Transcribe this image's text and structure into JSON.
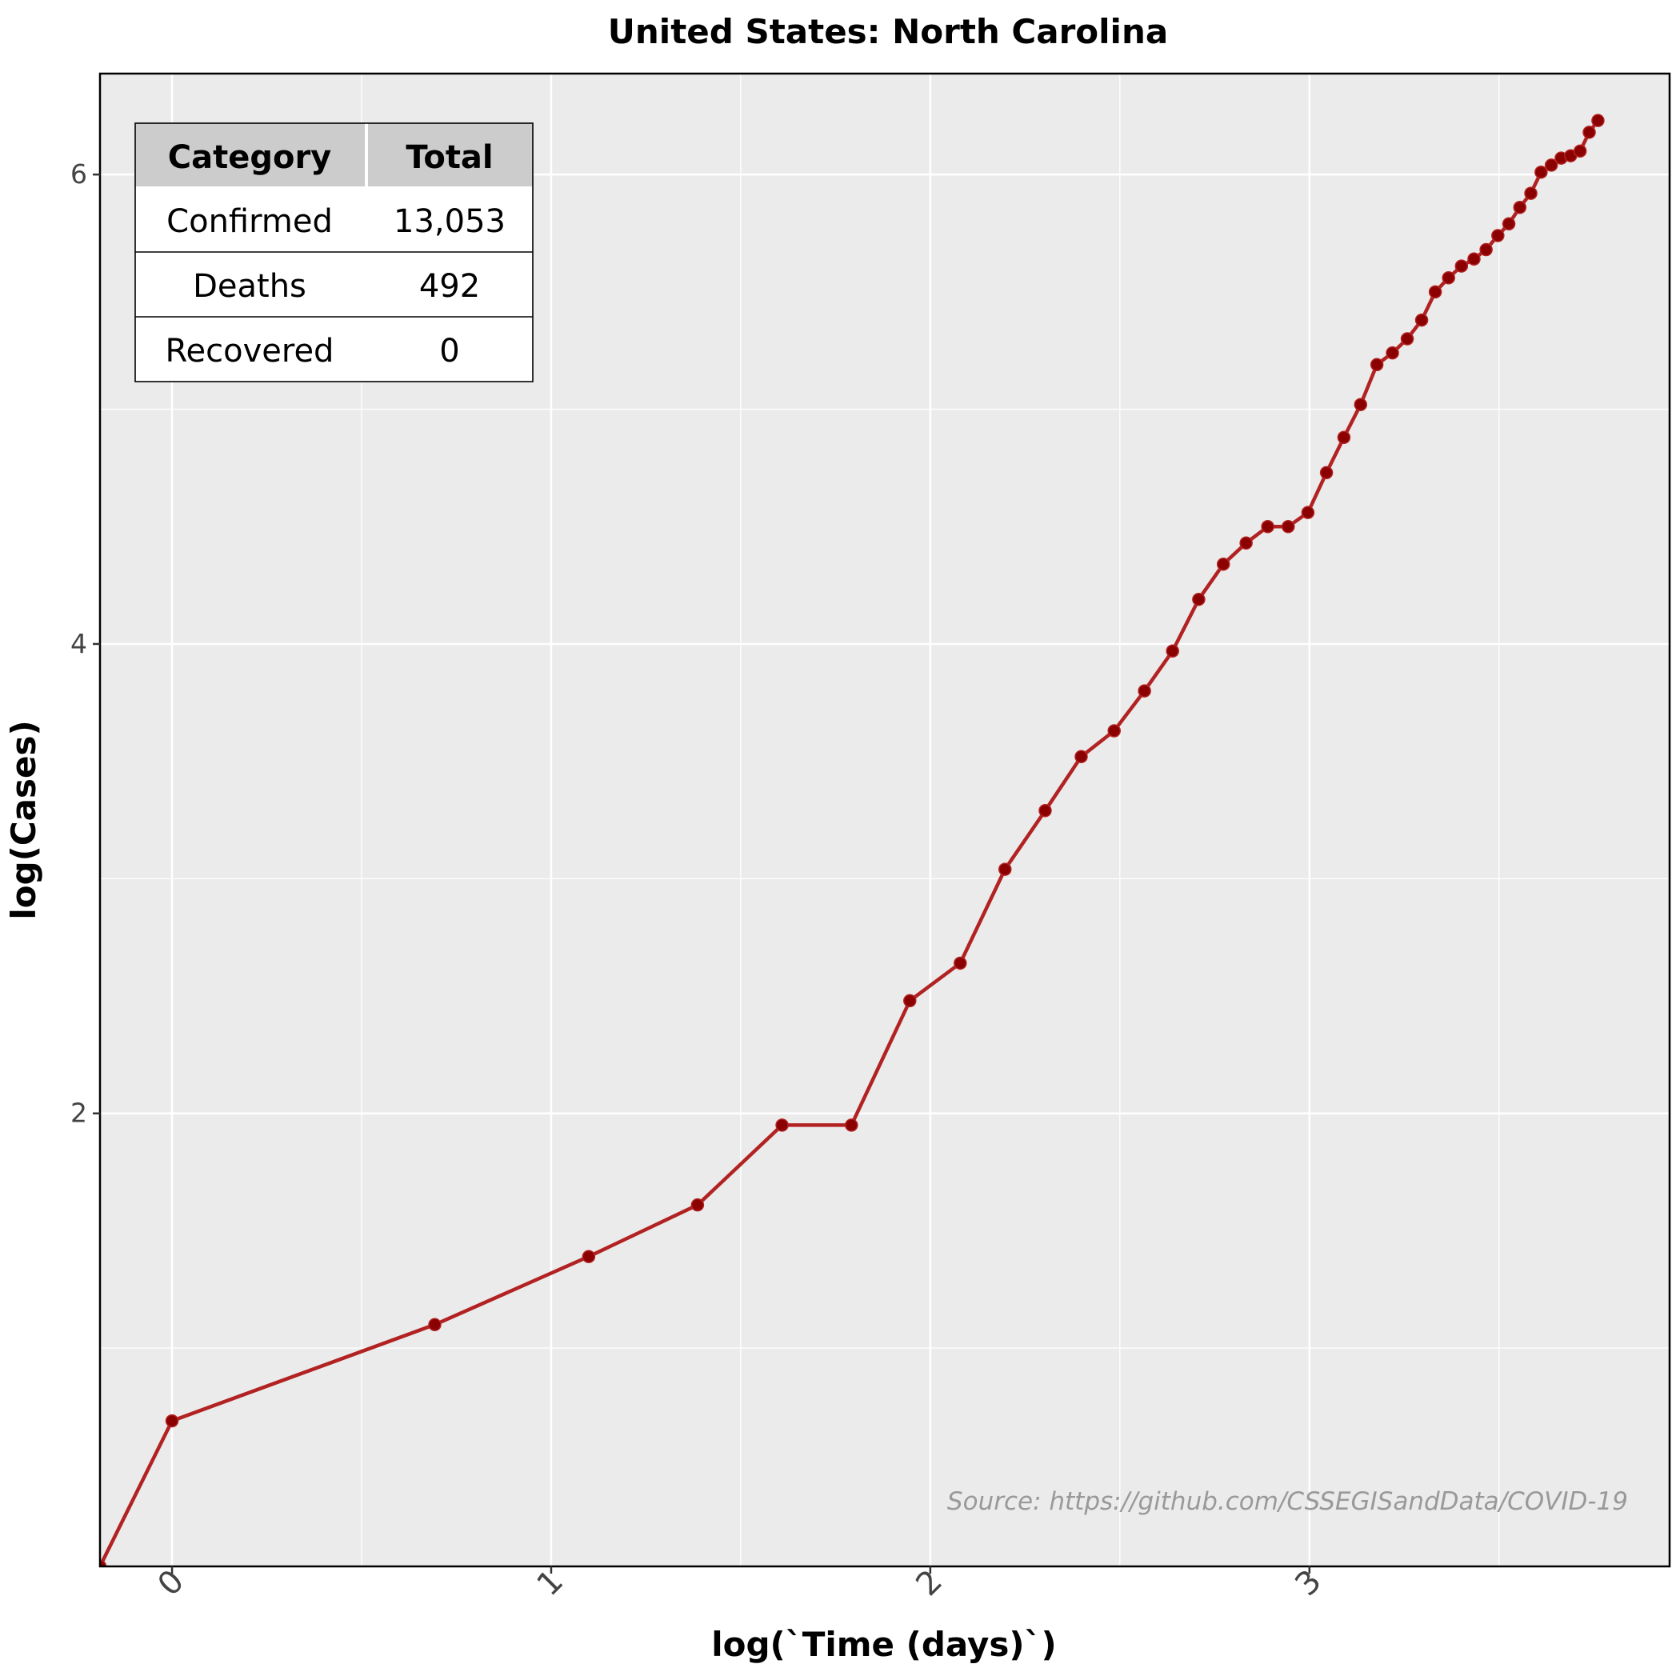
{
  "chart_data": {
    "type": "line",
    "title": "United States: North Carolina",
    "xlabel": "log(`Time (days)`)",
    "ylabel": "log(Cases)",
    "xlim": [
      -0.19,
      3.95
    ],
    "ylim": [
      0.07,
      6.43
    ],
    "x_ticks": [
      0,
      1,
      2,
      3
    ],
    "y_ticks": [
      2,
      4,
      6
    ],
    "grid": true,
    "background": "#EBEBEB",
    "line_color": "#B22222",
    "point_color": "#8B0000",
    "series": [
      {
        "x": [
          -0.19,
          0.0,
          0.693,
          1.099,
          1.386,
          1.609,
          1.792,
          1.946,
          2.079,
          2.197,
          2.303,
          2.398,
          2.485,
          2.565,
          2.639,
          2.708,
          2.773,
          2.833,
          2.89,
          2.944,
          2.996,
          3.045,
          3.091,
          3.135,
          3.178,
          3.219,
          3.258,
          3.296,
          3.332,
          3.367,
          3.401,
          3.434,
          3.466,
          3.497,
          3.526,
          3.555,
          3.584,
          3.611,
          3.638,
          3.664,
          3.689,
          3.714,
          3.738,
          3.761
        ],
        "y": [
          0.07,
          0.69,
          1.1,
          1.39,
          1.61,
          1.95,
          1.95,
          2.48,
          2.64,
          3.04,
          3.29,
          3.52,
          3.63,
          3.8,
          3.97,
          4.19,
          4.34,
          4.43,
          4.5,
          4.5,
          4.56,
          4.73,
          4.88,
          5.02,
          5.19,
          5.24,
          5.3,
          5.38,
          5.5,
          5.56,
          5.61,
          5.64,
          5.68,
          5.74,
          5.79,
          5.86,
          5.92,
          6.01,
          6.04,
          6.07,
          6.08,
          6.1,
          6.18,
          6.23
        ]
      }
    ],
    "annotation": "Source: https://github.com/CSSEGISandData/COVID-19",
    "table": {
      "headers": [
        "Category",
        "Total"
      ],
      "rows": [
        [
          "Confirmed",
          "13,053"
        ],
        [
          "Deaths",
          "492"
        ],
        [
          "Recovered",
          "0"
        ]
      ],
      "header_bg": "#CCCCCC"
    }
  }
}
